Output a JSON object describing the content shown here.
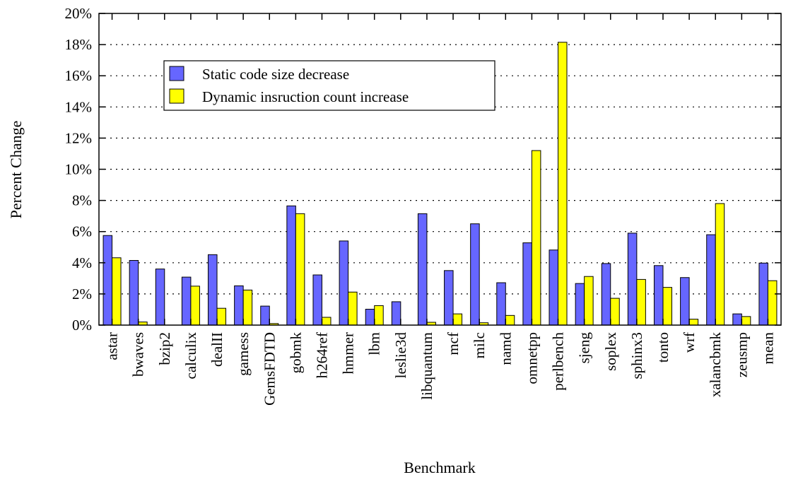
{
  "chart_data": {
    "type": "bar",
    "title": "",
    "xlabel": "Benchmark",
    "ylabel": "Percent Change",
    "ylim": [
      0,
      20
    ],
    "yticks": [
      0,
      2,
      4,
      6,
      8,
      10,
      12,
      14,
      16,
      18,
      20
    ],
    "ytick_labels": [
      "0%",
      "2%",
      "4%",
      "6%",
      "8%",
      "10%",
      "12%",
      "14%",
      "16%",
      "18%",
      "20%"
    ],
    "grid": "horizontal dotted",
    "legend_position": "top-left",
    "categories": [
      "astar",
      "bwaves",
      "bzip2",
      "calculix",
      "dealII",
      "gamess",
      "GemsFDTD",
      "gobmk",
      "h264ref",
      "hmmer",
      "lbm",
      "leslie3d",
      "libquantum",
      "mcf",
      "milc",
      "namd",
      "omnetpp",
      "perlbench",
      "sjeng",
      "soplex",
      "sphinx3",
      "tonto",
      "wrf",
      "xalancbmk",
      "zeusmp",
      "mean"
    ],
    "series": [
      {
        "name": "Static code size decrease",
        "color": "#6666ff",
        "values": [
          5.75,
          4.15,
          3.6,
          3.08,
          4.52,
          2.52,
          1.22,
          7.65,
          3.22,
          5.4,
          1.02,
          1.5,
          7.15,
          3.5,
          6.5,
          2.72,
          5.28,
          4.82,
          2.67,
          3.95,
          5.9,
          3.82,
          3.05,
          5.8,
          0.72,
          3.98
        ]
      },
      {
        "name": "Dynamic insruction count increase",
        "color": "#ffff00",
        "values": [
          4.32,
          0.2,
          0.0,
          2.5,
          1.08,
          2.25,
          0.1,
          7.15,
          0.5,
          2.12,
          1.25,
          0.0,
          0.18,
          0.72,
          0.15,
          0.62,
          11.2,
          18.15,
          3.12,
          1.72,
          2.93,
          2.42,
          0.38,
          7.8,
          0.55,
          2.85
        ]
      }
    ]
  }
}
